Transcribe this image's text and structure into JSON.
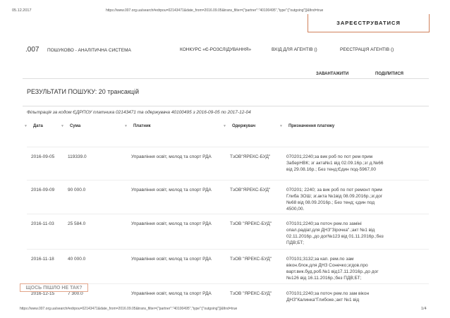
{
  "print_header": {
    "date": "05.12.2017",
    "url": "https://www.007.org.ua/search#edrpou=02143471&date_from=2016.09.05&trans_filter={\"partner\":\"40100495\",\"type\":[\"outgoing\"]}&find=true"
  },
  "register_label": "ЗАРЕЄСТРУВАТИСЯ",
  "nav": {
    "logo": ".007",
    "subtitle": "ПОШУКОВО - АНАЛІТИЧНА СИСТЕМА",
    "items": [
      "КОНКУРС «Є-РОЗСЛІДУВАННЯ»",
      "ВХІД ДЛЯ АГЕНТІВ ()",
      "РЕЄСТРАЦІЯ АГЕНТІВ ()"
    ]
  },
  "actions": {
    "download": "ЗАВАНТАЖИТИ",
    "share": "ПОДІЛИТИСЯ"
  },
  "results_title": "РЕЗУЛЬТАТИ ПОШУКУ: 20 трансакцій",
  "filter_text": "Фільтрація за кодом ЄДРПОУ платника 02143471 та одержувача 40100495 з 2016-09-05 по 2017-12-04",
  "table": {
    "headers": [
      "Дата",
      "Сума",
      "Платник",
      "Одержувач",
      "Призначення платежу"
    ],
    "rows": [
      {
        "date": "2016-09-05",
        "sum": "119339.0",
        "payer": "Управління освіт, молод та спорт РДА",
        "recipient": "ТзОВ\"ЯРЕКС-БУД\"",
        "purpose": "070201;2240;за вик роб по пот рем прим ЗаберНВК; зг акта№1 від 02.09.16р.;зг д.№66 від 29.08.16р.; Без тенд;Єдин под-5967,00"
      },
      {
        "date": "2016-09-09",
        "sum": "90 000.0",
        "payer": "Управління освіт, молод та спорт РДА",
        "recipient": "ТзОВ\"ЯРЕКС-БУД\"",
        "purpose": "070201; 2240; за вик роб по пот ремонт прим Глиба ЗОШ; зг.акта №1від 08.09.2016р.;зг.дог №68 від 08.09.2016р.; Без тенд; єдин под 4500,00."
      },
      {
        "date": "2016-11-03",
        "sum": "25 584.0",
        "payer": "Управління освіт, молод та спорт РДА",
        "recipient": "ТзОВ \"ЯРЕКС-БУД\"",
        "purpose": "070101;2240;за поточ рем.по заміні опал.радіат.для ДНЗ\"Зірочка\".;акт №1 від 02.11.2016р.,до дог№123 від 01.11.2016р.;без ПДВ;БТ;"
      },
      {
        "date": "2016-11-18",
        "sum": "40 000.0",
        "payer": "Управління освіт, молод та спорт РДА",
        "recipient": "ТзОВ \"ЯРЕКС-БУД\"",
        "purpose": "070101;3132;за кап. рем.по зам вікон.блок.для ДНЗ Сонечко;згдов.про варт.вик.буд.роб.№1 від17.11.2016р.,до дог №126 від 16.11.2016р.;без ПДВ;БТ;"
      },
      {
        "date": "2016-12-15",
        "sum": "7 300.0",
        "payer": "Управління освіт, молод та спорт РДА",
        "recipient": "ТзОВ \"ЯРЕКС-БУД\"",
        "purpose": "070101;2240;за поточ рем.по зам вікон ДНЗ\"Калинка\"Глибоке.;акт №1 від"
      }
    ]
  },
  "oops_label": "ЩОСЬ ПІШЛО НЕ ТАК?",
  "print_footer": {
    "url": "https://www.007.org.ua/search#edrpou=02143471&date_from=2016.09.05&trans_filter={\"partner\":\"40100495\",\"type\":[\"outgoing\"]}&find=true",
    "page": "1/4"
  }
}
